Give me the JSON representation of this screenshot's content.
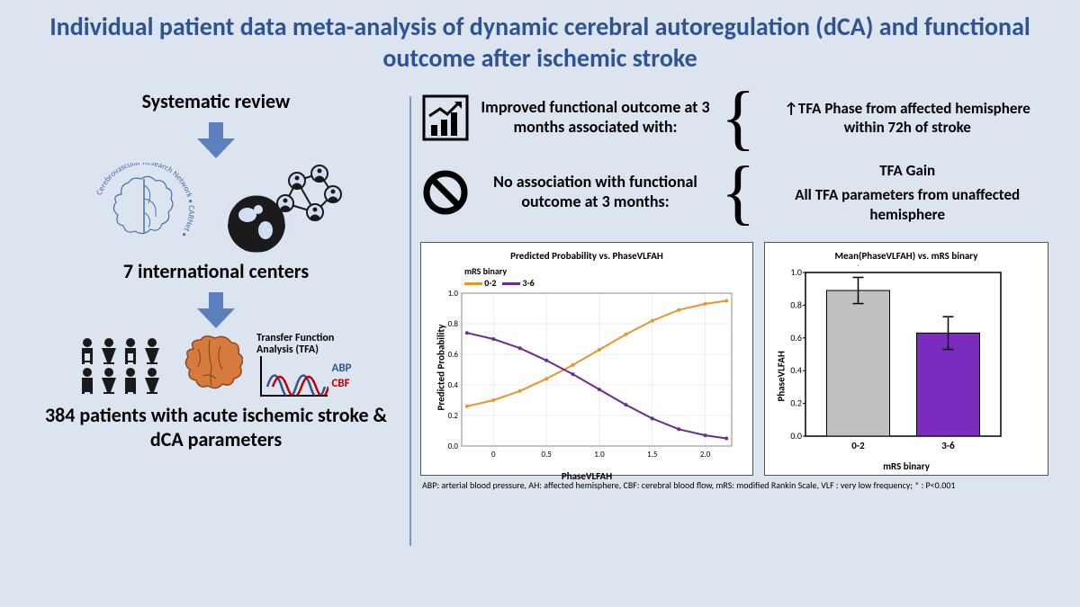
{
  "header": {
    "title": "Individual patient data meta-analysis of dynamic cerebral autoregulation (dCA) and functional outcome after ischemic stroke"
  },
  "left": {
    "systematic_review": "Systematic review",
    "carnet_label": "Cerebrovascular Research Network",
    "carnet_short": "CARNet",
    "centers": "7 international centers",
    "tfa_label": "Transfer Function Analysis (TFA)",
    "tfa_abp": "ABP",
    "tfa_cbf": "CBF",
    "patients": "384 patients with acute ischemic stroke & dCA parameters"
  },
  "right": {
    "finding1": {
      "text": "Improved functional outcome at 3 months associated with:",
      "detail": "↑TFA Phase from affected hemisphere within 72h of stroke"
    },
    "finding2": {
      "text": "No association with functional outcome at 3 months:",
      "detail_a": "TFA Gain",
      "detail_b": "All TFA parameters from unaffected hemisphere"
    },
    "chart1": {
      "title": "Predicted Probability vs. PhaseVLFAH",
      "ylabel": "Predicted Probability",
      "xlabel": "PhaseVLFAH",
      "legend_title": "mRS binary",
      "legend_a": "0-2",
      "legend_b": "3-6",
      "series_a_color": "#e8952e",
      "series_b_color": "#6a2c91",
      "xticks": [
        "0",
        "0.5",
        "1.0",
        "1.5",
        "2.0"
      ],
      "yticks": [
        "0.0",
        "0.2",
        "0.4",
        "0.6",
        "0.8",
        "1.0"
      ],
      "curve_a": [
        [
          -0.25,
          0.26
        ],
        [
          0.0,
          0.3
        ],
        [
          0.25,
          0.36
        ],
        [
          0.5,
          0.44
        ],
        [
          0.75,
          0.53
        ],
        [
          1.0,
          0.63
        ],
        [
          1.25,
          0.73
        ],
        [
          1.5,
          0.82
        ],
        [
          1.75,
          0.89
        ],
        [
          2.0,
          0.93
        ],
        [
          2.2,
          0.95
        ]
      ],
      "curve_b": [
        [
          -0.25,
          0.74
        ],
        [
          0.0,
          0.7
        ],
        [
          0.25,
          0.64
        ],
        [
          0.5,
          0.56
        ],
        [
          0.75,
          0.47
        ],
        [
          1.0,
          0.37
        ],
        [
          1.25,
          0.27
        ],
        [
          1.5,
          0.18
        ],
        [
          1.75,
          0.11
        ],
        [
          2.0,
          0.07
        ],
        [
          2.2,
          0.05
        ]
      ]
    },
    "chart2": {
      "title": "Mean(PhaseVLFAH) vs. mRS binary",
      "ylabel": "PhaseVLFAH",
      "xlabel": "mRS binary",
      "categories": [
        "0-2",
        "3-6"
      ],
      "values": [
        0.89,
        0.63
      ],
      "errors": [
        0.08,
        0.1
      ],
      "bar_colors": [
        "#c0c0c0",
        "#7b2cbf"
      ],
      "yticks": [
        "0.0",
        "0.2",
        "0.4",
        "0.6",
        "0.8",
        "1.0"
      ],
      "sig_marker": "*"
    },
    "footnote": "ABP: arterial blood pressure, AH: affected hemisphere, CBF: cerebral blood flow, mRS: modified Rankin Scale,  VLF :  very low frequency; * :   P<0.001"
  },
  "colors": {
    "accent": "#2f5496",
    "arrow": "#5d7fbf",
    "abp": "#2f5496",
    "cbf": "#c00000"
  }
}
